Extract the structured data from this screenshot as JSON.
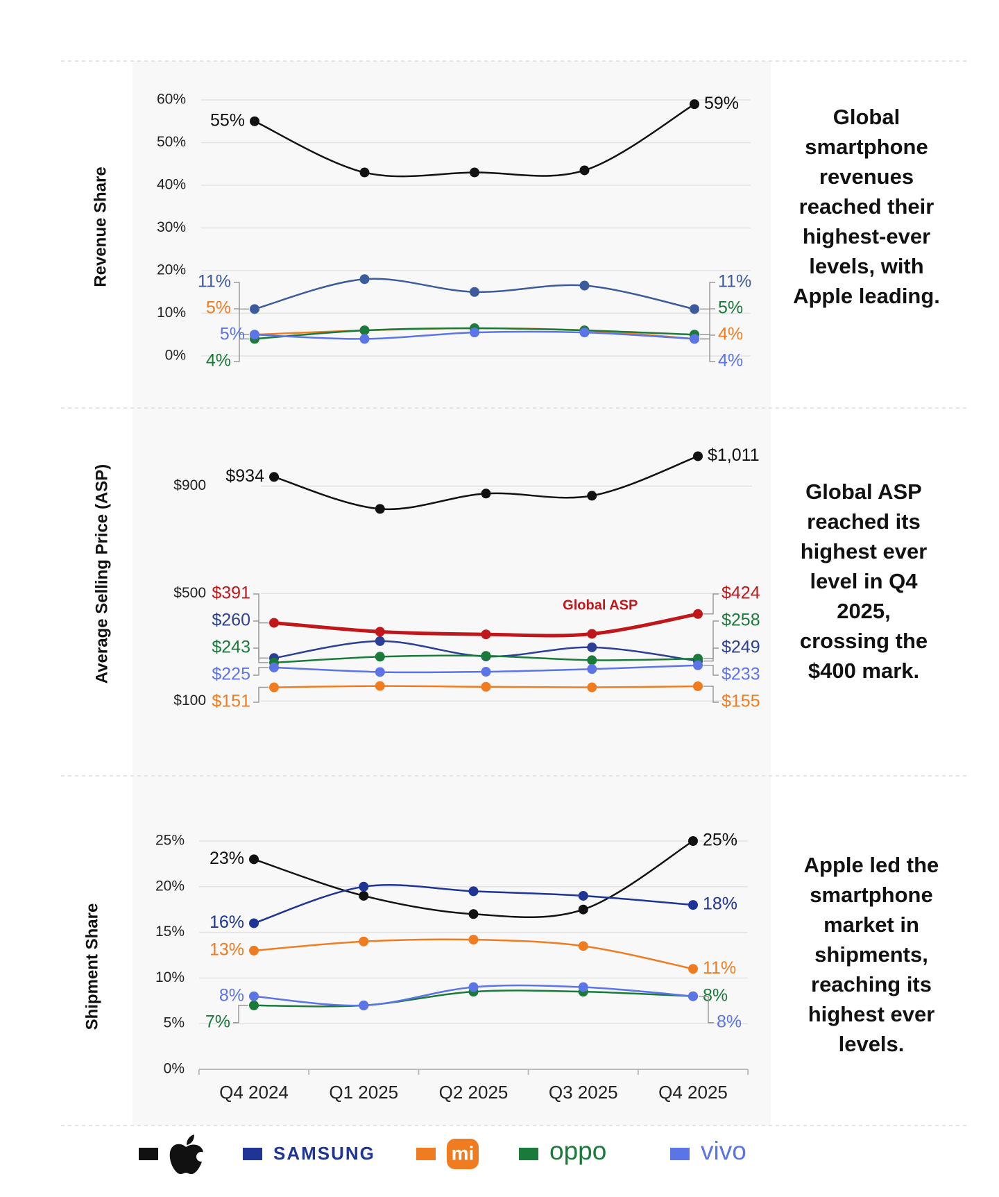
{
  "chart_data": [
    {
      "type": "line",
      "ylabel": "Revenue Share",
      "annotation": "Global smartphone revenues reached their highest-ever levels, with Apple leading.",
      "ylim": [
        0,
        60
      ],
      "yticks": [
        {
          "value": 0,
          "label": "0%"
        },
        {
          "value": 10,
          "label": "10%"
        },
        {
          "value": 20,
          "label": "20%"
        },
        {
          "value": 30,
          "label": "30%"
        },
        {
          "value": 40,
          "label": "40%"
        },
        {
          "value": 50,
          "label": "50%"
        },
        {
          "value": 60,
          "label": "60%"
        }
      ],
      "grid": true,
      "series": [
        {
          "color": "#111111",
          "values": [
            55,
            43,
            43,
            43.5,
            59
          ],
          "value_labels": [
            "55%",
            null,
            null,
            null,
            "59%"
          ]
        },
        {
          "color": "#3b5b9c",
          "values": [
            11,
            18,
            15,
            16.5,
            11
          ],
          "value_labels": [
            "11%",
            null,
            null,
            null,
            "11%"
          ]
        },
        {
          "color": "#f07c22",
          "values": [
            5,
            6,
            6.5,
            6,
            4
          ],
          "value_labels": [
            "5%",
            null,
            null,
            null,
            "4%"
          ]
        },
        {
          "color": "#1a7a3a",
          "values": [
            4,
            6,
            6.5,
            6,
            5
          ],
          "value_labels": [
            "4%",
            null,
            null,
            null,
            "5%"
          ]
        },
        {
          "color": "#5b74e6",
          "values": [
            5,
            4,
            5.5,
            5.5,
            4
          ],
          "value_labels": [
            "5%",
            null,
            null,
            null,
            "4%"
          ]
        }
      ]
    },
    {
      "type": "line",
      "ylabel": "Average Selling Price (ASP)",
      "annotation": "Global ASP reached its highest ever level in Q4 2025, crossing the $400 mark.",
      "ylim": [
        0,
        1100
      ],
      "yticks": [
        {
          "value": 100,
          "label": "$100"
        },
        {
          "value": 500,
          "label": "$500"
        },
        {
          "value": 900,
          "label": "$900"
        }
      ],
      "grid": true,
      "series": [
        {
          "color": "#111111",
          "values": [
            934,
            815,
            872,
            864,
            1011
          ],
          "value_labels": [
            "$934",
            null,
            null,
            null,
            "$1,011"
          ]
        },
        {
          "name": "Global ASP",
          "color": "#c0171b",
          "line_width": 5,
          "values": [
            391,
            358,
            348,
            350,
            424
          ],
          "value_labels": [
            "$391",
            null,
            null,
            null,
            "$424"
          ]
        },
        {
          "color": "#2a3f95",
          "values": [
            260,
            323,
            266,
            300,
            249
          ],
          "value_labels": [
            "$260",
            null,
            null,
            null,
            "$249"
          ]
        },
        {
          "color": "#f07c22",
          "values": [
            151,
            156,
            153,
            151,
            155
          ],
          "value_labels": [
            "$151",
            null,
            null,
            null,
            "$155"
          ]
        },
        {
          "color": "#1a7a3a",
          "values": [
            243,
            265,
            268,
            252,
            258
          ],
          "value_labels": [
            "$243",
            null,
            null,
            null,
            "$258"
          ]
        },
        {
          "color": "#5b74e6",
          "values": [
            225,
            208,
            209,
            219,
            233
          ],
          "value_labels": [
            "$225",
            null,
            null,
            null,
            "$233"
          ]
        }
      ]
    },
    {
      "type": "line",
      "ylabel": "Shipment Share",
      "annotation": "Apple led the smartphone market in shipments, reaching its highest ever levels.",
      "categories": [
        "Q4 2024",
        "Q1 2025",
        "Q2 2025",
        "Q3 2025",
        "Q4 2025"
      ],
      "ylim": [
        0,
        25
      ],
      "yticks": [
        {
          "value": 0,
          "label": "0%"
        },
        {
          "value": 5,
          "label": "5%"
        },
        {
          "value": 10,
          "label": "10%"
        },
        {
          "value": 15,
          "label": "15%"
        },
        {
          "value": 20,
          "label": "20%"
        },
        {
          "value": 25,
          "label": "25%"
        }
      ],
      "grid": true,
      "series": [
        {
          "color": "#111111",
          "values": [
            23,
            19,
            17,
            17.5,
            25
          ],
          "value_labels": [
            "23%",
            null,
            null,
            null,
            "25%"
          ]
        },
        {
          "name": "SAMSUNG",
          "color": "#1f3596",
          "values": [
            16,
            20,
            19.5,
            19,
            18
          ],
          "value_labels": [
            "16%",
            null,
            null,
            null,
            "18%"
          ]
        },
        {
          "name": "mi",
          "color": "#f07c22",
          "values": [
            13,
            14,
            14.2,
            13.5,
            11
          ],
          "value_labels": [
            "13%",
            null,
            null,
            null,
            "11%"
          ]
        },
        {
          "name": "oppo",
          "color": "#1a7a3a",
          "values": [
            7,
            7,
            8.5,
            8.5,
            8
          ],
          "value_labels": [
            "7%",
            null,
            null,
            null,
            "8%"
          ]
        },
        {
          "name": "vivo",
          "color": "#5b74e6",
          "values": [
            8,
            7,
            9,
            9,
            8
          ],
          "value_labels": [
            "8%",
            null,
            null,
            null,
            "8%"
          ]
        }
      ]
    }
  ]
}
